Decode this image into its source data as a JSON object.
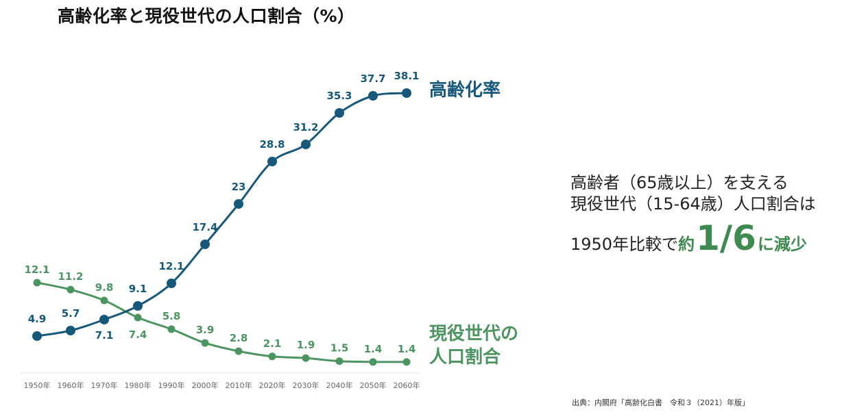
{
  "title": "高齢化率と現役世代の人口割合（%）",
  "colors": {
    "elderly": "#16587a",
    "working": "#4c9460",
    "axis_text": "#666666"
  },
  "chart_data": {
    "type": "line",
    "categories": [
      "1950年",
      "1960年",
      "1970年",
      "1980年",
      "1990年",
      "2000年",
      "2010年",
      "2020年",
      "2030年",
      "2040年",
      "2050年",
      "2060年"
    ],
    "series": [
      {
        "name": "高齢化率",
        "values": [
          4.9,
          5.7,
          7.1,
          9.1,
          12.1,
          17.4,
          23,
          28.8,
          31.2,
          35.3,
          37.7,
          38.1
        ],
        "labels": [
          "4.9",
          "5.7",
          "7.1",
          "9.1",
          "12.1",
          "17.4",
          "23",
          "28.8",
          "31.2",
          "35.3",
          "37.7",
          "38.1"
        ]
      },
      {
        "name": "現役世代の人口割合",
        "name_line1": "現役世代の",
        "name_line2": "人口割合",
        "values": [
          12.1,
          11.2,
          9.8,
          7.4,
          5.8,
          3.9,
          2.8,
          2.1,
          1.9,
          1.5,
          1.4,
          1.4
        ],
        "labels": [
          "12.1",
          "11.2",
          "9.8",
          "7.4",
          "5.8",
          "3.9",
          "2.8",
          "2.1",
          "1.9",
          "1.5",
          "1.4",
          "1.4"
        ]
      }
    ]
  },
  "callout": {
    "line1": "高齢者（65歳以上）を支える",
    "line2": "現役世代（15-64歳）人口割合は",
    "line3_prefix": "1950年比較で",
    "line3_em1": "約",
    "line3_fraction": "1/6",
    "line3_em2": "に減少"
  },
  "source": "出典：内閣府「高齢化白書　令和３（2021）年版」"
}
